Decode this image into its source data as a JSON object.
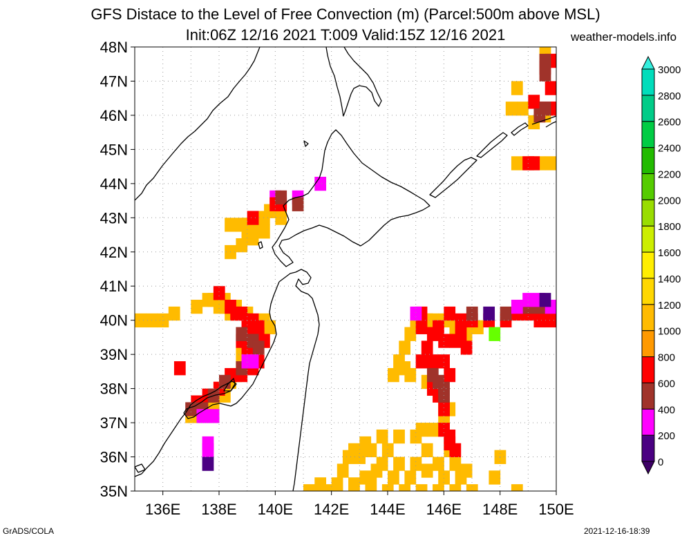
{
  "title": {
    "line1": "GFS Distace to the Level of Free Convection (m) (Parcel:500m above MSL)",
    "line2": "Init:06Z 12/16 2021 T:009 Valid:15Z 12/16 2021"
  },
  "source": "weather-models.info",
  "footer": {
    "left": "GrADS/COLA",
    "right": "2021-12-16-18:39"
  },
  "map": {
    "lon_range": [
      135,
      150
    ],
    "lat_range": [
      35,
      48
    ],
    "lon_ticks": [
      "136E",
      "138E",
      "140E",
      "142E",
      "144E",
      "146E",
      "148E",
      "150E"
    ],
    "lat_ticks": [
      "35N",
      "36N",
      "37N",
      "38N",
      "39N",
      "40N",
      "41N",
      "42N",
      "43N",
      "44N",
      "45N",
      "46N",
      "47N",
      "48N"
    ],
    "grid": "dotted"
  },
  "colorbar": {
    "levels": [
      "0",
      "200",
      "400",
      "600",
      "800",
      "1000",
      "1200",
      "1400",
      "1600",
      "1800",
      "2000",
      "2200",
      "2400",
      "2600",
      "2800",
      "3000"
    ],
    "colors": [
      "#4b0082",
      "#ff00ff",
      "#a0332a",
      "#ff0000",
      "#ff9900",
      "#ffbb00",
      "#ffd700",
      "#ffee00",
      "#ccee00",
      "#99dd00",
      "#55cc00",
      "#22bb00",
      "#00cc44",
      "#00cc88",
      "#00ddbb",
      "#00eedd"
    ],
    "under_color": "#3d0066",
    "over_color": "#33eedd"
  },
  "fields": [
    {
      "color": "#ffbb00",
      "cells": [
        [
          135.2,
          40.0
        ],
        [
          135.6,
          40.0
        ],
        [
          136.0,
          40.0
        ],
        [
          136.4,
          40.2
        ],
        [
          137.2,
          40.4
        ],
        [
          137.6,
          40.6
        ],
        [
          137.8,
          40.6
        ],
        [
          138.0,
          40.4
        ],
        [
          138.0,
          40.6
        ],
        [
          138.2,
          40.6
        ],
        [
          138.6,
          40.4
        ],
        [
          139.0,
          40.2
        ],
        [
          138.8,
          39.0
        ],
        [
          139.0,
          38.8
        ],
        [
          138.8,
          38.6
        ],
        [
          138.6,
          38.4
        ],
        [
          138.4,
          38.2
        ],
        [
          138.2,
          37.8
        ],
        [
          137.8,
          37.6
        ],
        [
          137.4,
          37.4
        ],
        [
          137.0,
          37.2
        ],
        [
          138.2,
          40.4
        ],
        [
          138.4,
          40.2
        ],
        [
          139.6,
          40.0
        ],
        [
          139.8,
          39.8
        ],
        [
          139.6,
          39.4
        ],
        [
          139.4,
          39.2
        ]
      ]
    },
    {
      "color": "#ff0000",
      "cells": [
        [
          138.0,
          40.8
        ],
        [
          138.4,
          40.4
        ],
        [
          138.6,
          40.2
        ],
        [
          138.8,
          40.2
        ],
        [
          139.0,
          40.0
        ],
        [
          139.2,
          40.0
        ],
        [
          139.4,
          39.8
        ],
        [
          139.4,
          39.6
        ],
        [
          139.0,
          39.6
        ],
        [
          138.8,
          39.4
        ],
        [
          139.0,
          39.2
        ],
        [
          139.2,
          39.0
        ],
        [
          139.4,
          38.8
        ],
        [
          139.2,
          38.6
        ],
        [
          138.8,
          38.4
        ],
        [
          138.4,
          38.4
        ],
        [
          138.0,
          38.0
        ],
        [
          137.6,
          37.8
        ],
        [
          137.2,
          37.6
        ],
        [
          136.6,
          38.6
        ],
        [
          139.6,
          39.4
        ],
        [
          139.4,
          39.4
        ],
        [
          137.4,
          37.6
        ]
      ]
    },
    {
      "color": "#a0332a",
      "cells": [
        [
          138.8,
          39.6
        ],
        [
          139.2,
          39.4
        ],
        [
          139.4,
          39.2
        ],
        [
          138.8,
          38.6
        ],
        [
          138.2,
          38.2
        ],
        [
          137.8,
          37.8
        ],
        [
          137.4,
          37.4
        ],
        [
          137.0,
          37.4
        ]
      ]
    },
    {
      "color": "#ff00ff",
      "cells": [
        [
          139.0,
          38.8
        ],
        [
          139.2,
          38.8
        ],
        [
          137.4,
          37.2
        ],
        [
          137.8,
          37.2
        ],
        [
          137.6,
          36.4
        ],
        [
          137.6,
          36.2
        ],
        [
          140.0,
          43.6
        ],
        [
          140.8,
          43.6
        ],
        [
          141.6,
          44.0
        ]
      ]
    },
    {
      "color": "#4b0082",
      "cells": [
        [
          137.6,
          35.8
        ]
      ]
    },
    {
      "color": "#ffbb00",
      "cells": [
        [
          138.4,
          42.8
        ],
        [
          138.8,
          42.8
        ],
        [
          139.0,
          42.8
        ],
        [
          139.4,
          42.8
        ],
        [
          139.6,
          43.0
        ],
        [
          139.8,
          43.2
        ],
        [
          140.0,
          43.2
        ],
        [
          139.2,
          42.4
        ],
        [
          138.8,
          42.2
        ],
        [
          138.4,
          42.0
        ],
        [
          139.0,
          42.6
        ],
        [
          140.2,
          43.0
        ],
        [
          139.6,
          42.6
        ]
      ]
    },
    {
      "color": "#ff0000",
      "cells": [
        [
          139.2,
          43.0
        ],
        [
          140.2,
          43.4
        ],
        [
          140.0,
          43.4
        ]
      ]
    },
    {
      "color": "#a0332a",
      "cells": [
        [
          140.8,
          43.4
        ],
        [
          140.2,
          43.6
        ]
      ]
    },
    {
      "color": "#ffbb00",
      "cells": [
        [
          145.0,
          40.0
        ],
        [
          145.4,
          40.0
        ],
        [
          145.6,
          40.0
        ],
        [
          146.0,
          40.0
        ],
        [
          146.4,
          39.8
        ],
        [
          146.8,
          39.6
        ],
        [
          147.2,
          39.8
        ],
        [
          144.8,
          39.6
        ],
        [
          144.6,
          39.2
        ],
        [
          144.4,
          38.8
        ],
        [
          144.2,
          38.4
        ],
        [
          144.6,
          38.6
        ],
        [
          144.8,
          38.4
        ],
        [
          145.4,
          38.2
        ],
        [
          145.8,
          38.0
        ],
        [
          146.0,
          37.6
        ],
        [
          146.2,
          37.4
        ],
        [
          146.0,
          37.2
        ],
        [
          145.2,
          36.8
        ],
        [
          145.6,
          36.8
        ],
        [
          144.4,
          36.6
        ],
        [
          145.0,
          36.6
        ],
        [
          143.8,
          36.6
        ],
        [
          143.2,
          36.4
        ],
        [
          142.8,
          36.2
        ],
        [
          143.4,
          36.2
        ],
        [
          144.0,
          36.2
        ],
        [
          145.4,
          36.2
        ],
        [
          146.2,
          36.2
        ],
        [
          142.6,
          36.0
        ],
        [
          143.0,
          36.0
        ],
        [
          143.8,
          35.8
        ],
        [
          144.4,
          35.8
        ],
        [
          145.0,
          35.8
        ],
        [
          145.8,
          35.8
        ],
        [
          146.4,
          35.8
        ],
        [
          142.4,
          35.6
        ],
        [
          143.2,
          35.4
        ],
        [
          143.6,
          35.6
        ],
        [
          144.2,
          35.4
        ],
        [
          144.8,
          35.4
        ],
        [
          145.4,
          35.6
        ],
        [
          146.0,
          35.4
        ],
        [
          146.6,
          35.4
        ],
        [
          142.2,
          35.2
        ],
        [
          142.8,
          35.2
        ],
        [
          143.4,
          35.2
        ],
        [
          144.0,
          35.0
        ],
        [
          144.6,
          35.0
        ],
        [
          145.2,
          35.0
        ],
        [
          145.8,
          35.0
        ],
        [
          146.4,
          35.0
        ],
        [
          147.0,
          35.0
        ],
        [
          141.2,
          35.0
        ],
        [
          141.6,
          35.2
        ],
        [
          141.8,
          35.0
        ],
        [
          148.0,
          36.0
        ],
        [
          148.6,
          35.0
        ],
        [
          147.8,
          35.4
        ],
        [
          146.8,
          35.6
        ]
      ]
    },
    {
      "color": "#ff0000",
      "cells": [
        [
          145.2,
          39.8
        ],
        [
          145.6,
          39.6
        ],
        [
          146.0,
          39.4
        ],
        [
          146.4,
          39.4
        ],
        [
          146.8,
          39.2
        ],
        [
          145.4,
          39.2
        ],
        [
          145.2,
          38.8
        ],
        [
          145.6,
          38.8
        ],
        [
          146.0,
          38.8
        ],
        [
          146.2,
          38.4
        ],
        [
          145.6,
          38.0
        ],
        [
          145.8,
          37.8
        ],
        [
          146.0,
          37.4
        ],
        [
          146.0,
          36.8
        ],
        [
          146.2,
          36.6
        ],
        [
          146.4,
          36.2
        ],
        [
          146.2,
          36.4
        ],
        [
          146.6,
          39.6
        ],
        [
          145.8,
          39.8
        ],
        [
          146.6,
          40.0
        ],
        [
          147.0,
          40.0
        ],
        [
          147.6,
          40.0
        ],
        [
          148.2,
          40.0
        ],
        [
          148.6,
          40.2
        ],
        [
          149.0,
          40.2
        ],
        [
          149.4,
          40.0
        ],
        [
          149.8,
          40.0
        ],
        [
          146.2,
          40.2
        ],
        [
          145.2,
          40.2
        ]
      ]
    },
    {
      "color": "#a0332a",
      "cells": [
        [
          145.6,
          38.4
        ],
        [
          145.8,
          38.2
        ],
        [
          146.0,
          38.0
        ],
        [
          146.0,
          37.8
        ],
        [
          148.8,
          40.4
        ],
        [
          149.2,
          40.4
        ],
        [
          149.6,
          40.4
        ],
        [
          147.0,
          40.2
        ],
        [
          148.2,
          40.2
        ]
      ]
    },
    {
      "color": "#ff00ff",
      "cells": [
        [
          149.0,
          40.6
        ],
        [
          149.4,
          40.6
        ],
        [
          148.6,
          40.4
        ],
        [
          149.8,
          40.4
        ],
        [
          145.0,
          40.2
        ]
      ]
    },
    {
      "color": "#4b0082",
      "cells": [
        [
          149.6,
          40.6
        ],
        [
          147.6,
          40.2
        ]
      ]
    },
    {
      "color": "#66ff00",
      "cells": [
        [
          147.8,
          39.6
        ]
      ]
    },
    {
      "color": "#ffbb00",
      "cells": [
        [
          149.6,
          47.8
        ],
        [
          148.6,
          46.8
        ],
        [
          148.4,
          46.2
        ],
        [
          148.8,
          46.2
        ],
        [
          149.2,
          45.8
        ],
        [
          149.6,
          46.0
        ],
        [
          148.6,
          44.6
        ],
        [
          149.0,
          44.6
        ],
        [
          149.4,
          44.6
        ],
        [
          149.8,
          44.6
        ]
      ]
    },
    {
      "color": "#ff0000",
      "cells": [
        [
          149.8,
          47.6
        ],
        [
          150.0,
          47.6
        ],
        [
          149.6,
          47.4
        ],
        [
          149.8,
          46.8
        ],
        [
          149.2,
          46.4
        ],
        [
          149.4,
          46.2
        ],
        [
          149.8,
          46.2
        ],
        [
          150.0,
          46.2
        ],
        [
          149.0,
          44.6
        ],
        [
          149.2,
          44.6
        ]
      ]
    },
    {
      "color": "#a0332a",
      "cells": [
        [
          149.6,
          47.6
        ],
        [
          149.6,
          47.2
        ],
        [
          149.6,
          46.2
        ],
        [
          149.4,
          46.0
        ]
      ]
    }
  ]
}
